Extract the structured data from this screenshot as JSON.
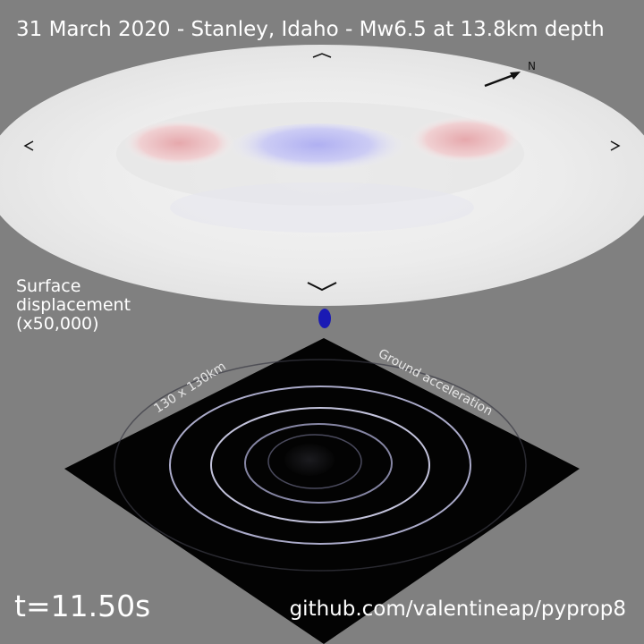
{
  "title": "31 March 2020 - Stanley, Idaho - Mw6.5 at 13.8km depth",
  "surface_label": {
    "line1": "Surface",
    "line2": "displacement",
    "line3": "(x50,000)"
  },
  "compass": {
    "north_label": "N"
  },
  "acceleration_panel": {
    "size_label": "130 x 130km",
    "panel_label": "Ground acceleration"
  },
  "time_label": "t=11.50s",
  "credit": "github.com/valentineap/pyprop8",
  "colors": {
    "background": "#808080",
    "uplift": "#e8a8a8",
    "subsidence": "#a8a8f0",
    "dish": "#eeeeee",
    "accel_panel": "#000000",
    "source_marker": "#1a1ab4"
  }
}
